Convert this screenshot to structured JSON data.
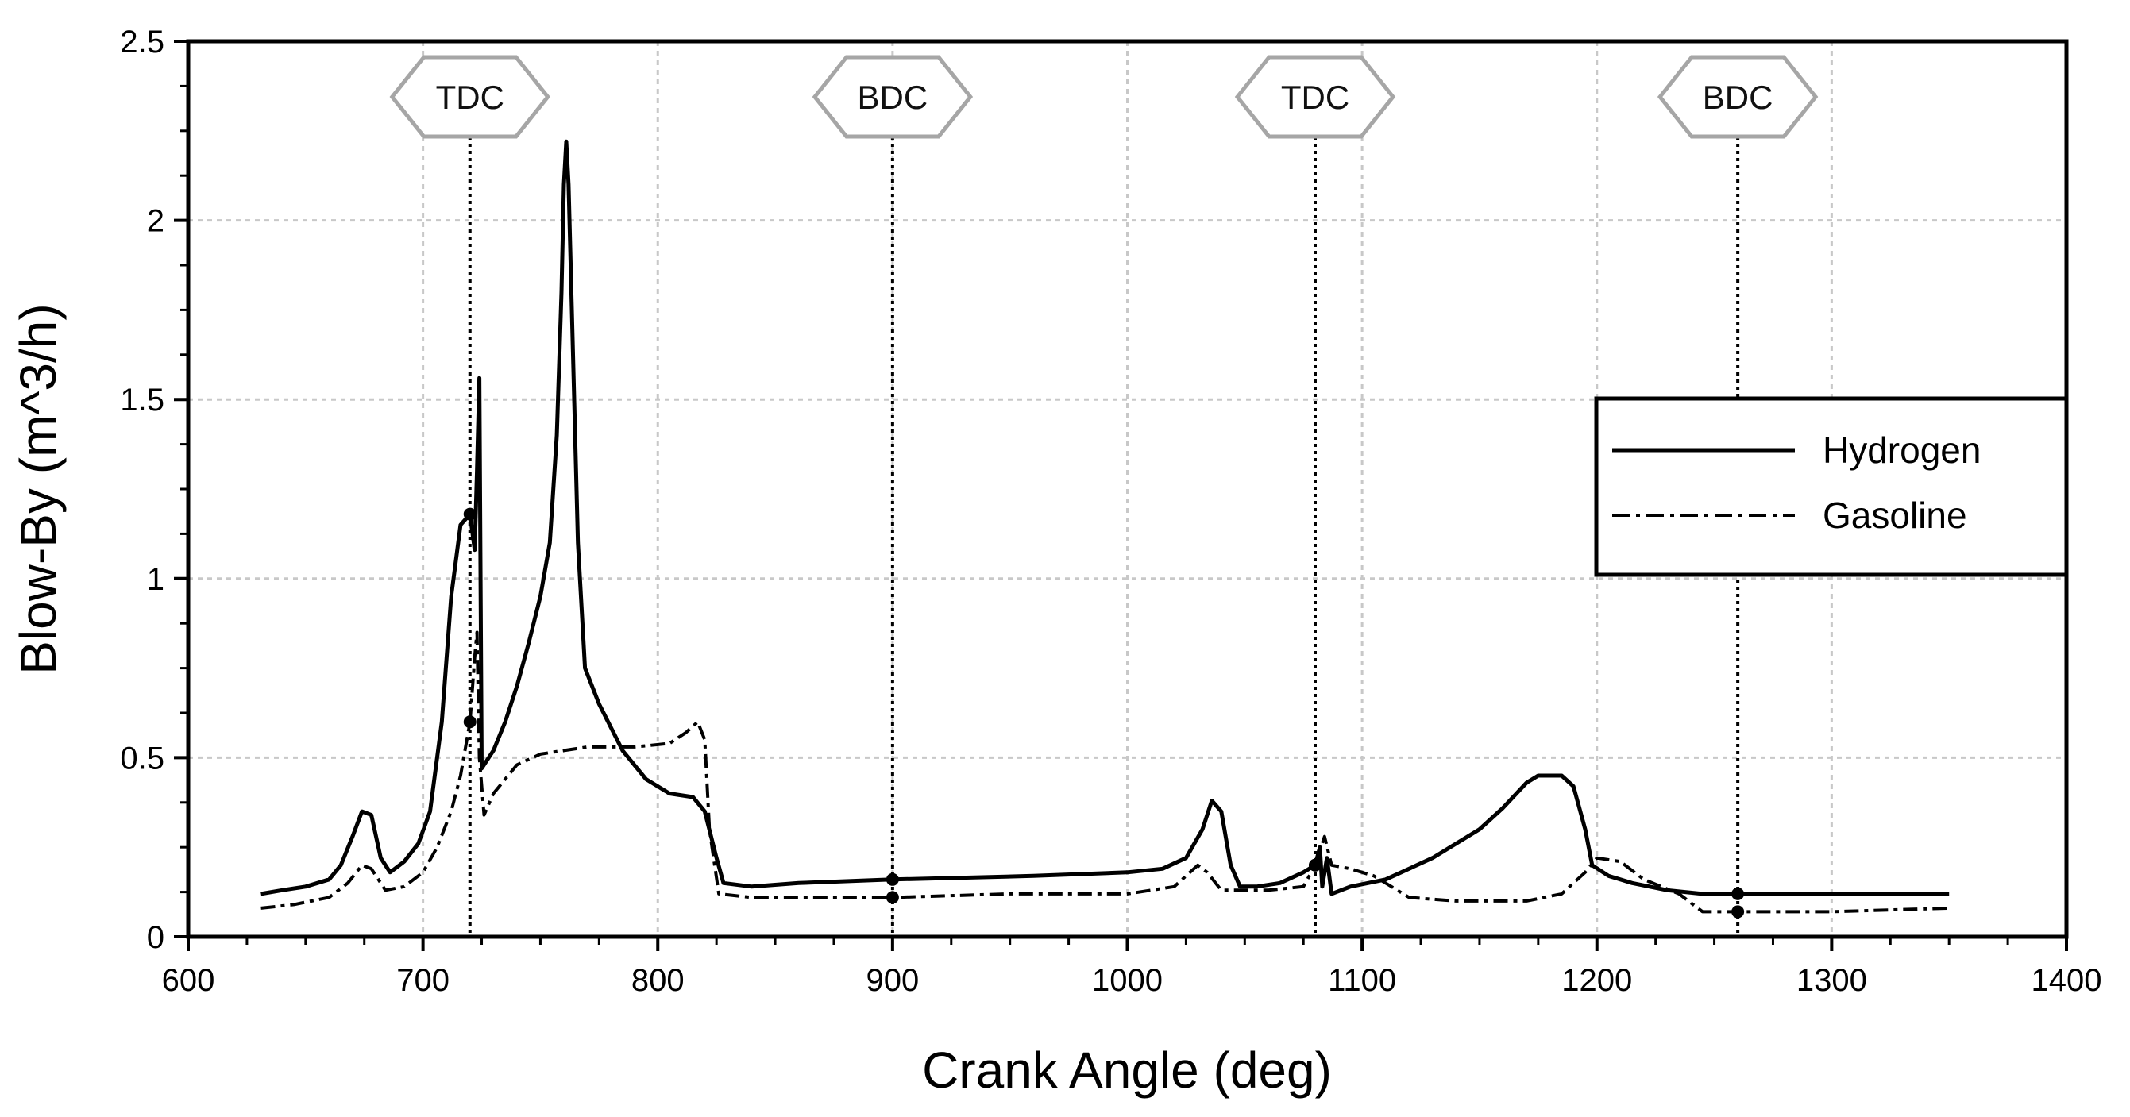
{
  "chart_data": {
    "type": "line",
    "title": "",
    "xlabel": "Crank Angle (deg)",
    "ylabel": "Blow-By (m^3/h)",
    "xlim": [
      600,
      1400
    ],
    "ylim": [
      0,
      2.5
    ],
    "xticks": [
      600,
      700,
      800,
      900,
      1000,
      1100,
      1200,
      1300,
      1400
    ],
    "yticks": [
      0,
      0.5,
      1,
      1.5,
      2,
      2.5
    ],
    "ytick_labels": [
      "0",
      "0.5",
      "1",
      "1.5",
      "2",
      "2.5"
    ],
    "grid": true,
    "legend_position": "right",
    "markers": [
      {
        "label": "TDC",
        "x": 720
      },
      {
        "label": "BDC",
        "x": 900
      },
      {
        "label": "TDC",
        "x": 1080
      },
      {
        "label": "BDC",
        "x": 1260
      }
    ],
    "series": [
      {
        "name": "Hydrogen",
        "style": "solid",
        "color": "#000000",
        "points": [
          [
            631,
            0.12
          ],
          [
            640,
            0.13
          ],
          [
            650,
            0.14
          ],
          [
            660,
            0.16
          ],
          [
            665,
            0.2
          ],
          [
            670,
            0.28
          ],
          [
            674,
            0.35
          ],
          [
            678,
            0.34
          ],
          [
            682,
            0.22
          ],
          [
            686,
            0.18
          ],
          [
            692,
            0.21
          ],
          [
            698,
            0.26
          ],
          [
            703,
            0.35
          ],
          [
            708,
            0.6
          ],
          [
            712,
            0.95
          ],
          [
            716,
            1.15
          ],
          [
            720,
            1.18
          ],
          [
            722,
            1.08
          ],
          [
            723,
            1.3
          ],
          [
            724,
            1.56
          ],
          [
            725,
            0.47
          ],
          [
            730,
            0.52
          ],
          [
            735,
            0.6
          ],
          [
            740,
            0.7
          ],
          [
            745,
            0.82
          ],
          [
            750,
            0.95
          ],
          [
            754,
            1.1
          ],
          [
            757,
            1.4
          ],
          [
            759,
            1.8
          ],
          [
            760,
            2.1
          ],
          [
            761,
            2.22
          ],
          [
            762,
            2.1
          ],
          [
            764,
            1.6
          ],
          [
            766,
            1.1
          ],
          [
            769,
            0.75
          ],
          [
            775,
            0.65
          ],
          [
            785,
            0.52
          ],
          [
            795,
            0.44
          ],
          [
            805,
            0.4
          ],
          [
            815,
            0.39
          ],
          [
            820,
            0.35
          ],
          [
            825,
            0.22
          ],
          [
            828,
            0.15
          ],
          [
            840,
            0.14
          ],
          [
            860,
            0.15
          ],
          [
            900,
            0.16
          ],
          [
            960,
            0.17
          ],
          [
            1000,
            0.18
          ],
          [
            1015,
            0.19
          ],
          [
            1025,
            0.22
          ],
          [
            1032,
            0.3
          ],
          [
            1036,
            0.38
          ],
          [
            1040,
            0.35
          ],
          [
            1044,
            0.2
          ],
          [
            1048,
            0.14
          ],
          [
            1055,
            0.14
          ],
          [
            1065,
            0.15
          ],
          [
            1075,
            0.18
          ],
          [
            1080,
            0.2
          ],
          [
            1082,
            0.25
          ],
          [
            1083,
            0.14
          ],
          [
            1085,
            0.22
          ],
          [
            1087,
            0.12
          ],
          [
            1095,
            0.14
          ],
          [
            1110,
            0.16
          ],
          [
            1130,
            0.22
          ],
          [
            1150,
            0.3
          ],
          [
            1160,
            0.36
          ],
          [
            1170,
            0.43
          ],
          [
            1175,
            0.45
          ],
          [
            1185,
            0.45
          ],
          [
            1190,
            0.42
          ],
          [
            1195,
            0.3
          ],
          [
            1198,
            0.2
          ],
          [
            1205,
            0.17
          ],
          [
            1215,
            0.15
          ],
          [
            1230,
            0.13
          ],
          [
            1245,
            0.12
          ],
          [
            1260,
            0.12
          ],
          [
            1300,
            0.12
          ],
          [
            1350,
            0.12
          ]
        ]
      },
      {
        "name": "Gasoline",
        "style": "dash-dot",
        "color": "#000000",
        "points": [
          [
            631,
            0.08
          ],
          [
            645,
            0.09
          ],
          [
            660,
            0.11
          ],
          [
            668,
            0.15
          ],
          [
            674,
            0.2
          ],
          [
            678,
            0.19
          ],
          [
            684,
            0.13
          ],
          [
            692,
            0.14
          ],
          [
            700,
            0.18
          ],
          [
            706,
            0.25
          ],
          [
            712,
            0.35
          ],
          [
            716,
            0.45
          ],
          [
            720,
            0.6
          ],
          [
            722,
            0.78
          ],
          [
            723,
            0.85
          ],
          [
            724,
            0.5
          ],
          [
            726,
            0.34
          ],
          [
            730,
            0.4
          ],
          [
            740,
            0.48
          ],
          [
            750,
            0.51
          ],
          [
            760,
            0.52
          ],
          [
            770,
            0.53
          ],
          [
            790,
            0.53
          ],
          [
            805,
            0.54
          ],
          [
            812,
            0.57
          ],
          [
            817,
            0.6
          ],
          [
            820,
            0.55
          ],
          [
            822,
            0.3
          ],
          [
            826,
            0.12
          ],
          [
            840,
            0.11
          ],
          [
            870,
            0.11
          ],
          [
            900,
            0.11
          ],
          [
            950,
            0.12
          ],
          [
            1000,
            0.12
          ],
          [
            1020,
            0.14
          ],
          [
            1030,
            0.2
          ],
          [
            1034,
            0.18
          ],
          [
            1040,
            0.13
          ],
          [
            1060,
            0.13
          ],
          [
            1075,
            0.14
          ],
          [
            1080,
            0.2
          ],
          [
            1084,
            0.28
          ],
          [
            1087,
            0.2
          ],
          [
            1095,
            0.19
          ],
          [
            1105,
            0.17
          ],
          [
            1120,
            0.11
          ],
          [
            1140,
            0.1
          ],
          [
            1170,
            0.1
          ],
          [
            1185,
            0.12
          ],
          [
            1195,
            0.18
          ],
          [
            1200,
            0.22
          ],
          [
            1210,
            0.21
          ],
          [
            1220,
            0.16
          ],
          [
            1235,
            0.12
          ],
          [
            1245,
            0.07
          ],
          [
            1250,
            0.07
          ],
          [
            1260,
            0.07
          ],
          [
            1300,
            0.07
          ],
          [
            1350,
            0.08
          ]
        ]
      }
    ]
  }
}
